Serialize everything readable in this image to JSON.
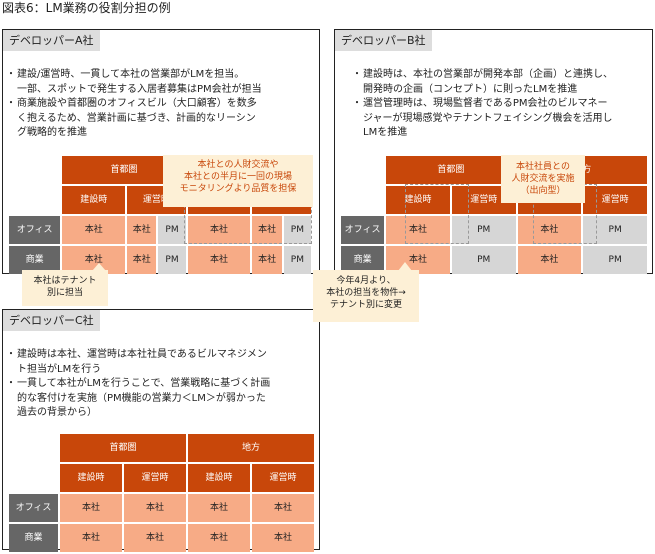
{
  "figure_title": "図表6：LM業務の役割分担の例",
  "labels": {
    "area_metro": "首都圏",
    "area_local": "地方",
    "construction": "建設時",
    "operation": "運営時",
    "office": "オフィス",
    "retail": "商業",
    "hq": "本社",
    "pm": "PM"
  },
  "panel_a": {
    "title": "デベロッパーA社",
    "bullets": [
      "建設/運営時、一貫して本社の営業部がLMを担当。\n一部、スポットで発生する入居者募集はPM会社が担当",
      "商業施設や首都圏のオフィスビル（大口顧客）を数多\nく抱えるため、営業計画に基づき、計画的なリーシン\nグ戦略的を推進"
    ],
    "callout": "本社との人財交流や\n本社との半月に一回の現場\nモニタリングより品質を担保"
  },
  "panel_b": {
    "title": "デベロッパーB社",
    "bullets": [
      "建設時は、本社の営業部が開発本部（企画）と連携し、\n開発時の企画（コンセプト）に則ったLMを推進",
      "運営管理時は、現場監督者であるPM会社のビルマネー\nジャーが現場感覚やテナントフェイシング機会を活用し\nLMを推進"
    ],
    "callout": "本社社員との\n人財交流を実施\n（出向型）"
  },
  "panel_c": {
    "title": "デベロッパーC社",
    "bullets": [
      "建設時は本社、運営時は本社社員であるビルマネジメン\nト担当がLMを行う",
      "一貫して本社がLMを行うことで、営業戦略に基づく計画\n的な客付けを実施（PM機能の営業力＜LM＞が弱かった\n過去の背景から）"
    ]
  },
  "note_tenant": "本社はテナント\n別に担当",
  "note_april": "今年4月より、\n本社の担当を物件→\nテナント別に変更"
}
